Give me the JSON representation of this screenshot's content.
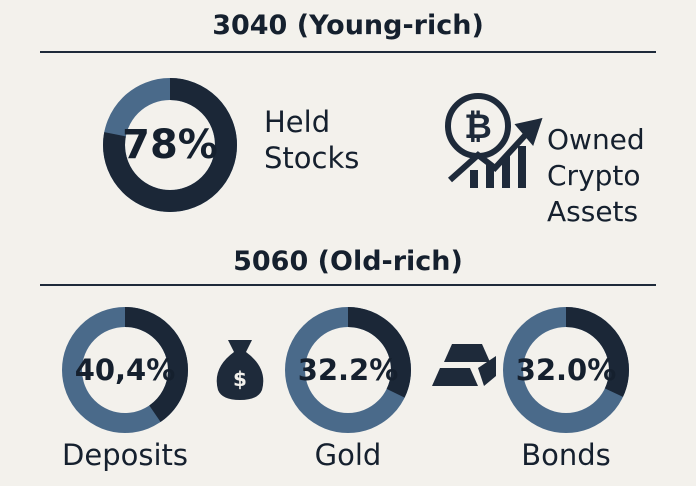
{
  "sections": [
    {
      "title": "3040 (Young-rich)",
      "items": [
        {
          "value": 78,
          "value_label": "78%",
          "label": "Held Stocks"
        }
      ],
      "note": "Owned Crypto Assets"
    },
    {
      "title": "5060 (Old-rich)",
      "items": [
        {
          "value": 40.4,
          "value_label": "40,4%",
          "label": "Deposits"
        },
        {
          "value": 32.2,
          "value_label": "32.2%",
          "label": "Gold"
        },
        {
          "value": 32.0,
          "value_label": "32.0%",
          "label": "Bonds"
        }
      ]
    }
  ]
}
